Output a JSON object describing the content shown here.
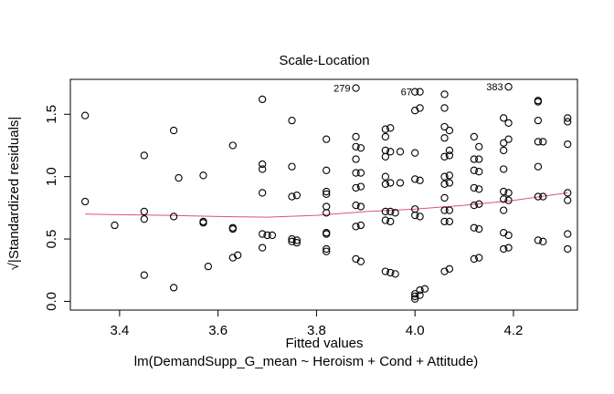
{
  "chart_data": {
    "type": "scatter",
    "title": "Scale-Location",
    "xlabel": "Fitted values",
    "subtitle": "lm(DemandSupp_G_mean ~ Heroism + Cond + Attitude)",
    "ylabel": "√|Standardized residuals|",
    "xlim": [
      3.3,
      4.33
    ],
    "ylim": [
      -0.07,
      1.78
    ],
    "x_ticks": [
      3.4,
      3.6,
      3.8,
      4.0,
      4.2
    ],
    "x_tick_labels": [
      "3.4",
      "3.6",
      "3.8",
      "4.0",
      "4.2"
    ],
    "y_ticks": [
      0.0,
      0.5,
      1.0,
      1.5
    ],
    "y_tick_labels": [
      "0.0",
      "0.5",
      "1.0",
      "1.5"
    ],
    "grid": false,
    "point_color": "#000000",
    "smooth_color": "#DF536B",
    "points": [
      {
        "x": 3.33,
        "y": 1.49
      },
      {
        "x": 3.33,
        "y": 0.8
      },
      {
        "x": 3.39,
        "y": 0.61
      },
      {
        "x": 3.45,
        "y": 1.17
      },
      {
        "x": 3.45,
        "y": 0.72
      },
      {
        "x": 3.45,
        "y": 0.66
      },
      {
        "x": 3.45,
        "y": 0.21
      },
      {
        "x": 3.51,
        "y": 1.37
      },
      {
        "x": 3.51,
        "y": 0.68
      },
      {
        "x": 3.51,
        "y": 0.11
      },
      {
        "x": 3.52,
        "y": 0.99
      },
      {
        "x": 3.57,
        "y": 1.01
      },
      {
        "x": 3.57,
        "y": 0.64
      },
      {
        "x": 3.57,
        "y": 0.63
      },
      {
        "x": 3.58,
        "y": 0.28
      },
      {
        "x": 3.63,
        "y": 1.25
      },
      {
        "x": 3.63,
        "y": 0.59
      },
      {
        "x": 3.63,
        "y": 0.58
      },
      {
        "x": 3.63,
        "y": 0.35
      },
      {
        "x": 3.64,
        "y": 0.37
      },
      {
        "x": 3.69,
        "y": 1.62
      },
      {
        "x": 3.69,
        "y": 1.1
      },
      {
        "x": 3.69,
        "y": 1.06
      },
      {
        "x": 3.69,
        "y": 0.87
      },
      {
        "x": 3.69,
        "y": 0.54
      },
      {
        "x": 3.7,
        "y": 0.53
      },
      {
        "x": 3.71,
        "y": 0.53
      },
      {
        "x": 3.69,
        "y": 0.43
      },
      {
        "x": 3.75,
        "y": 1.45
      },
      {
        "x": 3.75,
        "y": 1.08
      },
      {
        "x": 3.75,
        "y": 0.84
      },
      {
        "x": 3.76,
        "y": 0.85
      },
      {
        "x": 3.75,
        "y": 0.5
      },
      {
        "x": 3.75,
        "y": 0.48
      },
      {
        "x": 3.76,
        "y": 0.49
      },
      {
        "x": 3.76,
        "y": 0.47
      },
      {
        "x": 3.82,
        "y": 1.3
      },
      {
        "x": 3.82,
        "y": 1.05
      },
      {
        "x": 3.82,
        "y": 0.88
      },
      {
        "x": 3.82,
        "y": 0.86
      },
      {
        "x": 3.82,
        "y": 0.76
      },
      {
        "x": 3.82,
        "y": 0.71
      },
      {
        "x": 3.82,
        "y": 0.55
      },
      {
        "x": 3.82,
        "y": 0.54
      },
      {
        "x": 3.82,
        "y": 0.42
      },
      {
        "x": 3.82,
        "y": 0.4
      },
      {
        "x": 3.88,
        "y": 1.71
      },
      {
        "x": 3.88,
        "y": 1.32
      },
      {
        "x": 3.88,
        "y": 1.24
      },
      {
        "x": 3.89,
        "y": 1.23
      },
      {
        "x": 3.88,
        "y": 1.14
      },
      {
        "x": 3.88,
        "y": 1.03
      },
      {
        "x": 3.89,
        "y": 1.03
      },
      {
        "x": 3.88,
        "y": 0.91
      },
      {
        "x": 3.89,
        "y": 0.92
      },
      {
        "x": 3.88,
        "y": 0.77
      },
      {
        "x": 3.89,
        "y": 0.76
      },
      {
        "x": 3.88,
        "y": 0.6
      },
      {
        "x": 3.89,
        "y": 0.61
      },
      {
        "x": 3.88,
        "y": 0.34
      },
      {
        "x": 3.89,
        "y": 0.32
      },
      {
        "x": 3.94,
        "y": 1.38
      },
      {
        "x": 3.95,
        "y": 1.39
      },
      {
        "x": 3.94,
        "y": 1.32
      },
      {
        "x": 3.94,
        "y": 1.21
      },
      {
        "x": 3.95,
        "y": 1.2
      },
      {
        "x": 3.97,
        "y": 1.2
      },
      {
        "x": 3.94,
        "y": 1.16
      },
      {
        "x": 3.94,
        "y": 1.0
      },
      {
        "x": 3.94,
        "y": 0.94
      },
      {
        "x": 3.95,
        "y": 0.95
      },
      {
        "x": 3.97,
        "y": 0.95
      },
      {
        "x": 3.94,
        "y": 0.72
      },
      {
        "x": 3.95,
        "y": 0.72
      },
      {
        "x": 3.96,
        "y": 0.71
      },
      {
        "x": 3.94,
        "y": 0.65
      },
      {
        "x": 3.95,
        "y": 0.64
      },
      {
        "x": 3.94,
        "y": 0.24
      },
      {
        "x": 3.95,
        "y": 0.23
      },
      {
        "x": 3.96,
        "y": 0.22
      },
      {
        "x": 4.0,
        "y": 1.68
      },
      {
        "x": 4.01,
        "y": 1.68
      },
      {
        "x": 4.0,
        "y": 1.53
      },
      {
        "x": 4.01,
        "y": 1.55
      },
      {
        "x": 4.0,
        "y": 1.19
      },
      {
        "x": 4.0,
        "y": 0.98
      },
      {
        "x": 4.01,
        "y": 0.97
      },
      {
        "x": 4.0,
        "y": 0.74
      },
      {
        "x": 4.0,
        "y": 0.69
      },
      {
        "x": 4.01,
        "y": 0.68
      },
      {
        "x": 4.0,
        "y": 0.06
      },
      {
        "x": 4.0,
        "y": 0.04
      },
      {
        "x": 4.01,
        "y": 0.05
      },
      {
        "x": 4.0,
        "y": 0.02
      },
      {
        "x": 4.01,
        "y": 0.09
      },
      {
        "x": 4.02,
        "y": 0.1
      },
      {
        "x": 4.06,
        "y": 1.66
      },
      {
        "x": 4.06,
        "y": 1.55
      },
      {
        "x": 4.06,
        "y": 1.4
      },
      {
        "x": 4.07,
        "y": 1.37
      },
      {
        "x": 4.06,
        "y": 1.31
      },
      {
        "x": 4.07,
        "y": 1.21
      },
      {
        "x": 4.06,
        "y": 1.16
      },
      {
        "x": 4.07,
        "y": 1.17
      },
      {
        "x": 4.06,
        "y": 1.0
      },
      {
        "x": 4.07,
        "y": 1.01
      },
      {
        "x": 4.06,
        "y": 0.94
      },
      {
        "x": 4.07,
        "y": 0.95
      },
      {
        "x": 4.06,
        "y": 0.83
      },
      {
        "x": 4.06,
        "y": 0.73
      },
      {
        "x": 4.07,
        "y": 0.73
      },
      {
        "x": 4.06,
        "y": 0.64
      },
      {
        "x": 4.07,
        "y": 0.64
      },
      {
        "x": 4.06,
        "y": 0.24
      },
      {
        "x": 4.07,
        "y": 0.26
      },
      {
        "x": 4.12,
        "y": 1.32
      },
      {
        "x": 4.13,
        "y": 1.24
      },
      {
        "x": 4.12,
        "y": 1.14
      },
      {
        "x": 4.13,
        "y": 1.14
      },
      {
        "x": 4.12,
        "y": 1.05
      },
      {
        "x": 4.13,
        "y": 1.04
      },
      {
        "x": 4.12,
        "y": 0.91
      },
      {
        "x": 4.13,
        "y": 0.9
      },
      {
        "x": 4.12,
        "y": 0.77
      },
      {
        "x": 4.13,
        "y": 0.78
      },
      {
        "x": 4.12,
        "y": 0.59
      },
      {
        "x": 4.13,
        "y": 0.58
      },
      {
        "x": 4.12,
        "y": 0.34
      },
      {
        "x": 4.13,
        "y": 0.35
      },
      {
        "x": 4.19,
        "y": 1.72
      },
      {
        "x": 4.18,
        "y": 1.47
      },
      {
        "x": 4.19,
        "y": 1.43
      },
      {
        "x": 4.18,
        "y": 1.27
      },
      {
        "x": 4.19,
        "y": 1.3
      },
      {
        "x": 4.18,
        "y": 1.21
      },
      {
        "x": 4.18,
        "y": 1.06
      },
      {
        "x": 4.18,
        "y": 0.88
      },
      {
        "x": 4.19,
        "y": 0.87
      },
      {
        "x": 4.18,
        "y": 0.82
      },
      {
        "x": 4.19,
        "y": 0.81
      },
      {
        "x": 4.18,
        "y": 0.73
      },
      {
        "x": 4.18,
        "y": 0.55
      },
      {
        "x": 4.19,
        "y": 0.53
      },
      {
        "x": 4.18,
        "y": 0.42
      },
      {
        "x": 4.19,
        "y": 0.43
      },
      {
        "x": 4.25,
        "y": 1.61
      },
      {
        "x": 4.25,
        "y": 1.6
      },
      {
        "x": 4.25,
        "y": 1.45
      },
      {
        "x": 4.25,
        "y": 1.28
      },
      {
        "x": 4.26,
        "y": 1.28
      },
      {
        "x": 4.25,
        "y": 1.08
      },
      {
        "x": 4.25,
        "y": 0.84
      },
      {
        "x": 4.26,
        "y": 0.84
      },
      {
        "x": 4.25,
        "y": 0.49
      },
      {
        "x": 4.26,
        "y": 0.48
      },
      {
        "x": 4.31,
        "y": 1.47
      },
      {
        "x": 4.31,
        "y": 1.44
      },
      {
        "x": 4.31,
        "y": 1.26
      },
      {
        "x": 4.31,
        "y": 0.87
      },
      {
        "x": 4.31,
        "y": 0.81
      },
      {
        "x": 4.31,
        "y": 0.54
      },
      {
        "x": 4.31,
        "y": 0.42
      }
    ],
    "annotations": [
      {
        "label": "279",
        "x": 3.88,
        "y": 1.71
      },
      {
        "label": "67",
        "x": 4.005,
        "y": 1.68
      },
      {
        "label": "383",
        "x": 4.19,
        "y": 1.72
      }
    ],
    "smooth_line": {
      "x": [
        3.33,
        3.4,
        3.5,
        3.6,
        3.7,
        3.8,
        3.9,
        4.0,
        4.1,
        4.2,
        4.31
      ],
      "y": [
        0.7,
        0.695,
        0.69,
        0.68,
        0.675,
        0.69,
        0.72,
        0.74,
        0.77,
        0.81,
        0.87
      ]
    }
  }
}
